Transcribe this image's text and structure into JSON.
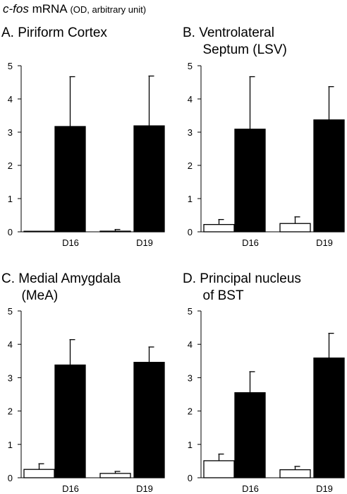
{
  "figure": {
    "title_gene": "c-fos",
    "title_main": "mRNA",
    "title_unit": "(OD, arbitrary unit)"
  },
  "chart_data": [
    {
      "type": "bar",
      "panel": "A.",
      "title_lines": [
        "Piriform Cortex"
      ],
      "categories": [
        "D16",
        "D19"
      ],
      "series": [
        {
          "fill": "#ffffff",
          "values": [
            0.01,
            0.02
          ],
          "errors": [
            0,
            0.05
          ]
        },
        {
          "fill": "#000000",
          "values": [
            3.17,
            3.19
          ],
          "errors": [
            1.5,
            1.5
          ]
        }
      ],
      "ylim": [
        0,
        5
      ],
      "yticks": [
        "0",
        "1",
        "2",
        "3",
        "4",
        "5"
      ]
    },
    {
      "type": "bar",
      "panel": "B.",
      "title_lines": [
        "Ventrolateral",
        "Septum (LSV)"
      ],
      "categories": [
        "D16",
        "D19"
      ],
      "series": [
        {
          "fill": "#ffffff",
          "values": [
            0.22,
            0.25
          ],
          "errors": [
            0.15,
            0.2
          ]
        },
        {
          "fill": "#000000",
          "values": [
            3.09,
            3.37
          ],
          "errors": [
            1.58,
            1.0
          ]
        }
      ],
      "ylim": [
        0,
        5
      ],
      "yticks": [
        "0",
        "1",
        "2",
        "3",
        "4",
        "5"
      ]
    },
    {
      "type": "bar",
      "panel": "C.",
      "title_lines": [
        "Medial Amygdala",
        "(MeA)"
      ],
      "categories": [
        "D16",
        "D19"
      ],
      "series": [
        {
          "fill": "#ffffff",
          "values": [
            0.25,
            0.13
          ],
          "errors": [
            0.17,
            0.06
          ]
        },
        {
          "fill": "#000000",
          "values": [
            3.38,
            3.46
          ],
          "errors": [
            0.76,
            0.46
          ]
        }
      ],
      "ylim": [
        0,
        5
      ],
      "yticks": [
        "0",
        "1",
        "2",
        "3",
        "4",
        "5"
      ]
    },
    {
      "type": "bar",
      "panel": "D.",
      "title_lines": [
        "Principal nucleus",
        "of BST"
      ],
      "categories": [
        "D16",
        "D19"
      ],
      "series": [
        {
          "fill": "#ffffff",
          "values": [
            0.51,
            0.24
          ],
          "errors": [
            0.2,
            0.1
          ]
        },
        {
          "fill": "#000000",
          "values": [
            2.55,
            3.59
          ],
          "errors": [
            0.63,
            0.74
          ]
        }
      ],
      "ylim": [
        0,
        5
      ],
      "yticks": [
        "0",
        "1",
        "2",
        "3",
        "4",
        "5"
      ]
    }
  ]
}
